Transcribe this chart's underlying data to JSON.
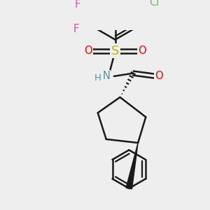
{
  "background_color": "#eeeeee",
  "bond_color": "#1a1a1a",
  "bond_width": 1.8,
  "figsize": [
    3.0,
    3.0
  ],
  "dpi": 100,
  "atom_labels": {
    "O_carbonyl": {
      "text": "O",
      "color": "#ff0000",
      "fontsize": 10.5
    },
    "N": {
      "text": "N",
      "color": "#4499aa",
      "fontsize": 10.5
    },
    "H": {
      "text": "H",
      "color": "#4499aa",
      "fontsize": 9.5
    },
    "S": {
      "text": "S",
      "color": "#bbbb00",
      "fontsize": 13
    },
    "O_left": {
      "text": "O",
      "color": "#ff0000",
      "fontsize": 10.5
    },
    "O_right": {
      "text": "O",
      "color": "#ff0000",
      "fontsize": 10.5
    },
    "Cl": {
      "text": "Cl",
      "color": "#66bb66",
      "fontsize": 10.5
    },
    "F1": {
      "text": "F",
      "color": "#ee44bb",
      "fontsize": 10.5
    },
    "F2": {
      "text": "F",
      "color": "#ee44bb",
      "fontsize": 10.5
    }
  }
}
